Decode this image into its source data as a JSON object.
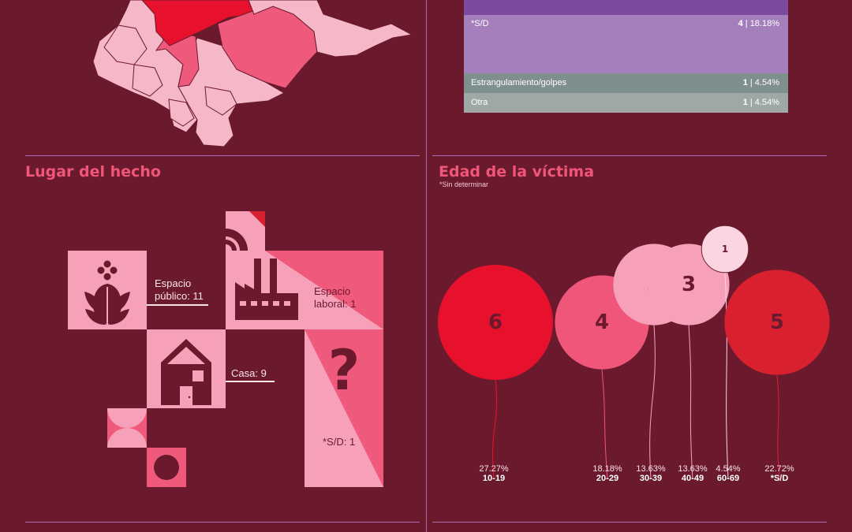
{
  "method_bars": {
    "rows": [
      {
        "label": "*S/D",
        "count": "4",
        "pct": "18.18%",
        "color": "#a47fbc"
      },
      {
        "label": "Estrangulamiento/golpes",
        "count": "1",
        "pct": "4.54%",
        "color": "#7f8f8c"
      },
      {
        "label": "Otra",
        "count": "1",
        "pct": "4.54%",
        "color": "#a0a8a5"
      }
    ],
    "top_color": "#7a4a9d"
  },
  "place": {
    "title": "Lugar del hecho",
    "labels": {
      "public_line1": "Espacio",
      "public_line2": "público: 11",
      "work_line1": "Espacio",
      "work_line2": "laboral: 1",
      "house": "Casa: 9",
      "unknown": "*S/D: 1",
      "unknown_glyph": "?"
    }
  },
  "age": {
    "title": "Edad de la víctima",
    "subtitle": "*Sin determinar"
  },
  "chart_data": {
    "type": "bubble",
    "title": "Edad de la víctima",
    "subtitle": "*Sin determinar",
    "categories": [
      "10-19",
      "20-29",
      "30-39",
      "40-49",
      "60-69",
      "*S/D"
    ],
    "values": [
      6,
      4,
      3,
      3,
      1,
      5
    ],
    "percentages": [
      "27.27%",
      "18.18%",
      "13.63%",
      "13.63%",
      "4.54%",
      "22.72%"
    ],
    "colors": [
      "#e8112d",
      "#f0557a",
      "#f6a0b9",
      "#f6a0b9",
      "#fbd5e2",
      "#d9202e"
    ]
  },
  "colors": {
    "background": "#6b1a2e",
    "accent": "#f0557a",
    "map_light": "#f6b7c8",
    "map_mid": "#ef5a7c",
    "map_dark": "#e8112d"
  }
}
